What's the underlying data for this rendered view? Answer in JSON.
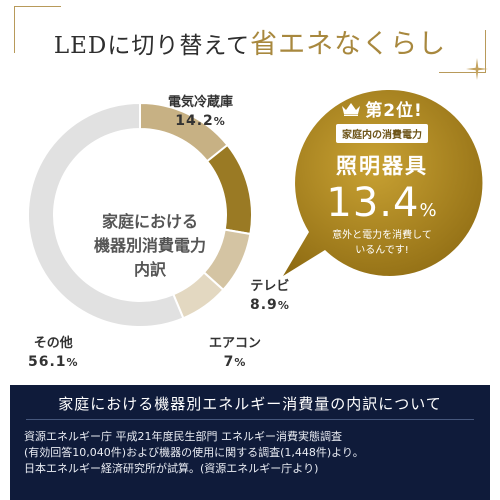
{
  "header": {
    "title_prefix": "LEDに切り替えて",
    "title_emphasis": "省エネなくらし"
  },
  "chart_data": {
    "type": "pie",
    "donut": true,
    "center_label": [
      "家庭における",
      "機器別消費電力",
      "内訳"
    ],
    "slices": [
      {
        "label": "電気冷蔵庫",
        "value": 14.2,
        "value_text": "14.2",
        "unit": "%",
        "color": "#c7b184"
      },
      {
        "label": "照明器具",
        "value": 13.4,
        "value_text": "",
        "unit": "",
        "color": "#9a7a24"
      },
      {
        "label": "テレビ",
        "value": 8.9,
        "value_text": "8.9",
        "unit": "%",
        "color": "#d4c4a3"
      },
      {
        "label": "エアコン",
        "value": 7.0,
        "value_text": "7",
        "unit": "%",
        "color": "#e3d8c1"
      },
      {
        "label": "その他",
        "value": 56.1,
        "value_text": "56.1",
        "unit": "%",
        "color": "#e1e1e1"
      }
    ]
  },
  "callout": {
    "rank": "第2位!",
    "subtitle": "家庭内の消費電力",
    "category": "照明器具",
    "value": "13.4",
    "unit": "%",
    "note_lines": [
      "意外と電力を消費して",
      "いるんです!"
    ],
    "color": "#a8841f"
  },
  "footer": {
    "title": "家庭における機器別エネルギー消費量の内訳について",
    "source_lines": [
      "資源エネルギー庁 平成21年度民生部門 エネルギー消費実態調査",
      "(有効回答10,040件)および機器の使用に関する調査(1,448件)より。",
      "日本エネルギー経済研究所が試算。(資源エネルギー庁より)"
    ]
  }
}
